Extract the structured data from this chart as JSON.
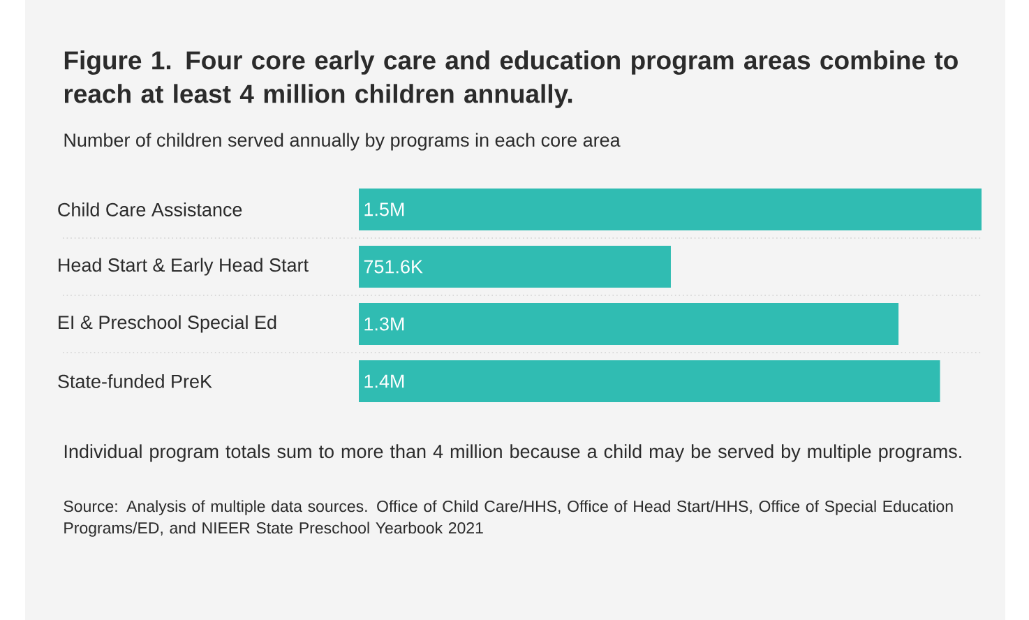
{
  "chart_data": {
    "type": "bar",
    "orientation": "horizontal",
    "title": "Figure 1. Four core early care and education program areas combine to reach at least 4 million children annually.",
    "subtitle": "Number of children served annually by programs in each core area",
    "categories": [
      "Child Care Assistance",
      "Head Start & Early Head Start",
      "EI & Preschool Special Ed",
      "State-funded PreK"
    ],
    "values": [
      1500000,
      751600,
      1300000,
      1400000
    ],
    "value_labels": [
      "1.5M",
      "751.6K",
      "1.3M",
      "1.4M"
    ],
    "color": "#30bcb2",
    "grid": "y",
    "annotations": [
      "Individual program totals sum to more than 4 million because a child may be served by multiple programs.",
      "Source: Analysis of multiple data sources. Office of Child Care/HHS, Office of Head Start/HHS, Office of Special Education Programs/ED, and NIEER State Preschool Yearbook 2021"
    ]
  }
}
